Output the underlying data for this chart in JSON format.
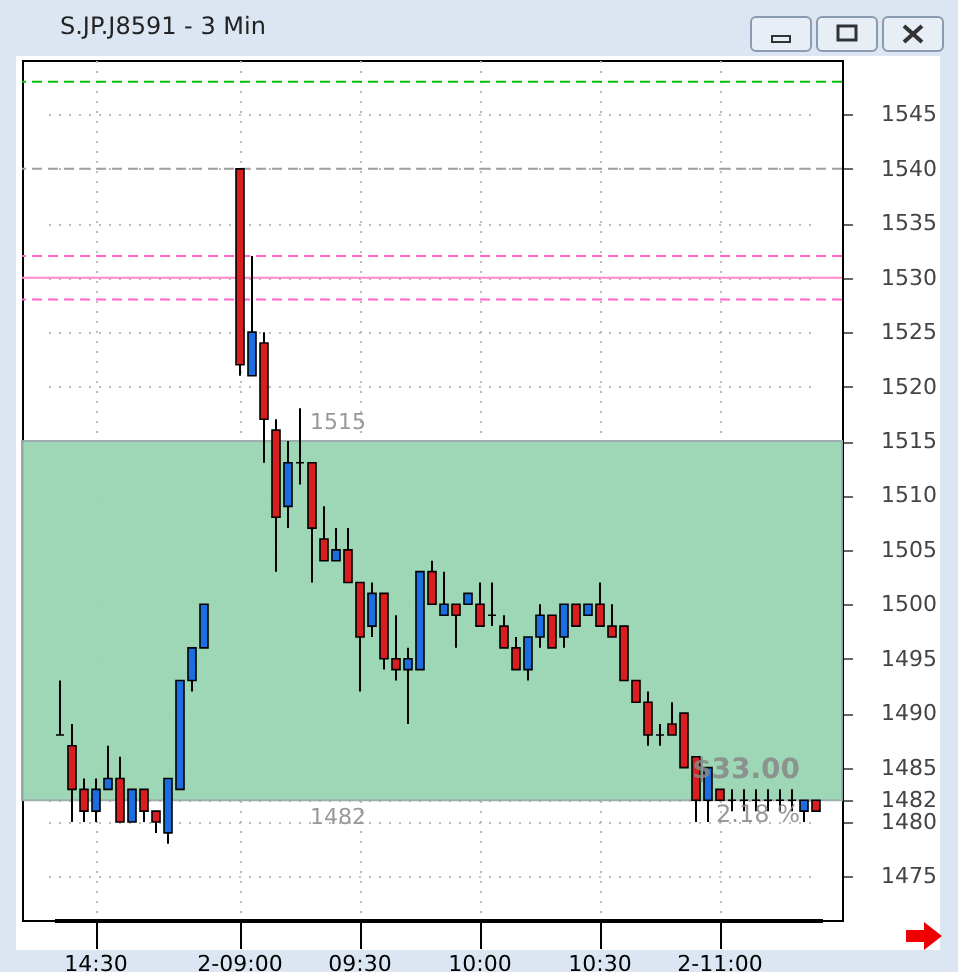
{
  "chart_data": {
    "type": "candlestick",
    "title": "S.JP.J8591 - 3 Min",
    "categories": [
      null,
      null,
      null,
      "14:30",
      null,
      null,
      null,
      null,
      null,
      null,
      null,
      null,
      null,
      null,
      null,
      "2-09:00",
      null,
      null,
      null,
      null,
      null,
      null,
      null,
      null,
      null,
      "09:30",
      null,
      null,
      null,
      null,
      null,
      null,
      null,
      null,
      null,
      "10:00",
      null,
      null,
      null,
      null,
      null,
      null,
      null,
      null,
      null,
      "10:30",
      null,
      null,
      null,
      null,
      null,
      null,
      null,
      null,
      null,
      "2-11:00",
      null,
      null,
      null,
      null,
      null,
      null,
      null,
      null
    ],
    "ohlc": [
      [
        1488,
        1493,
        1488,
        1488
      ],
      [
        1487,
        1489,
        1480,
        1483
      ],
      [
        1483,
        1484,
        1480,
        1481
      ],
      [
        1481,
        1484,
        1480,
        1483
      ],
      [
        1483,
        1487,
        1483,
        1484
      ],
      [
        1484,
        1486,
        1480,
        1480
      ],
      [
        1480,
        1483,
        1480,
        1483
      ],
      [
        1483,
        1483,
        1480,
        1481
      ],
      [
        1481,
        1481,
        1479,
        1480
      ],
      [
        1479,
        1484,
        1478,
        1484
      ],
      [
        1483,
        1493,
        1483,
        1493
      ],
      [
        1493,
        1496,
        1492,
        1496
      ],
      [
        1496,
        1500,
        1496,
        1500
      ],
      null,
      null,
      [
        1540,
        1540,
        1521,
        1522
      ],
      [
        1521,
        1532,
        1521,
        1525
      ],
      [
        1524,
        1525,
        1513,
        1517
      ],
      [
        1516,
        1517,
        1503,
        1508
      ],
      [
        1509,
        1515,
        1507,
        1513
      ],
      [
        1513,
        1518,
        1511,
        1513
      ],
      [
        1513,
        1513,
        1502,
        1507
      ],
      [
        1506,
        1509,
        1504,
        1504
      ],
      [
        1504,
        1507,
        1504,
        1505
      ],
      [
        1505,
        1507,
        1502,
        1502
      ],
      [
        1502,
        1502,
        1492,
        1497
      ],
      [
        1498,
        1502,
        1497,
        1501
      ],
      [
        1501,
        1501,
        1494,
        1495
      ],
      [
        1495,
        1499,
        1493,
        1494
      ],
      [
        1494,
        1496,
        1489,
        1495
      ],
      [
        1494,
        1503,
        1494,
        1503
      ],
      [
        1503,
        1504,
        1500,
        1500
      ],
      [
        1499,
        1503,
        1499,
        1500
      ],
      [
        1500,
        1500,
        1496,
        1499
      ],
      [
        1500,
        1501,
        1500,
        1501
      ],
      [
        1500,
        1502,
        1498,
        1498
      ],
      [
        1499,
        1502,
        1498,
        1499
      ],
      [
        1498,
        1499,
        1496,
        1496
      ],
      [
        1496,
        1497,
        1494,
        1494
      ],
      [
        1494,
        1497,
        1493,
        1497
      ],
      [
        1497,
        1500,
        1496,
        1499
      ],
      [
        1499,
        1499,
        1496,
        1496
      ],
      [
        1497,
        1500,
        1496,
        1500
      ],
      [
        1500,
        1500,
        1498,
        1498
      ],
      [
        1499,
        1500,
        1499,
        1500
      ],
      [
        1500,
        1502,
        1498,
        1498
      ],
      [
        1498,
        1500,
        1497,
        1497
      ],
      [
        1498,
        1498,
        1493,
        1493
      ],
      [
        1493,
        1493,
        1491,
        1491
      ],
      [
        1491,
        1492,
        1487,
        1488
      ],
      [
        1488,
        1489,
        1487,
        1488
      ],
      [
        1489,
        1491,
        1488,
        1488
      ],
      [
        1490,
        1490,
        1485,
        1485
      ],
      [
        1486,
        1486,
        1480,
        1482
      ],
      [
        1482,
        1485,
        1480,
        1485
      ],
      [
        1483,
        1483,
        1482,
        1482
      ],
      [
        1482,
        1483,
        1481,
        1482
      ],
      [
        1482,
        1483,
        1481,
        1482
      ],
      [
        1482,
        1483,
        1481,
        1482
      ],
      [
        1482,
        1483,
        1481,
        1482
      ],
      [
        1482,
        1483,
        1481,
        1482
      ],
      [
        1482,
        1483,
        1481,
        1482
      ],
      [
        1481,
        1482,
        1480,
        1482
      ],
      [
        1482,
        1482,
        1481,
        1481
      ]
    ],
    "ylim": [
      1471,
      1550
    ],
    "yticks": [
      1475,
      1480,
      1482,
      1485,
      1490,
      1495,
      1500,
      1505,
      1510,
      1515,
      1520,
      1525,
      1530,
      1535,
      1540,
      1545
    ],
    "grid": true,
    "ref_lines": [
      {
        "axis": "y",
        "value": 1548,
        "color": "#00c000",
        "line_style": "dashed"
      },
      {
        "axis": "y",
        "value": 1540,
        "color": "#a0a0a0",
        "line_style": "dashed"
      },
      {
        "axis": "y",
        "value": 1532,
        "color": "#ff66cc",
        "line_style": "dashed"
      },
      {
        "axis": "y",
        "value": 1530,
        "color": "#ff88cc",
        "line_style": "solid"
      },
      {
        "axis": "y",
        "value": 1528,
        "color": "#ff66cc",
        "line_style": "dashed"
      }
    ],
    "bands": [
      {
        "axis": "y",
        "from": 1482,
        "to": 1515,
        "color": "#99d5b2"
      }
    ],
    "annotations": [
      {
        "text": "1515",
        "y": 1515
      },
      {
        "text": "1482",
        "y": 1482
      },
      "$33.00",
      "2.18 %"
    ]
  }
}
